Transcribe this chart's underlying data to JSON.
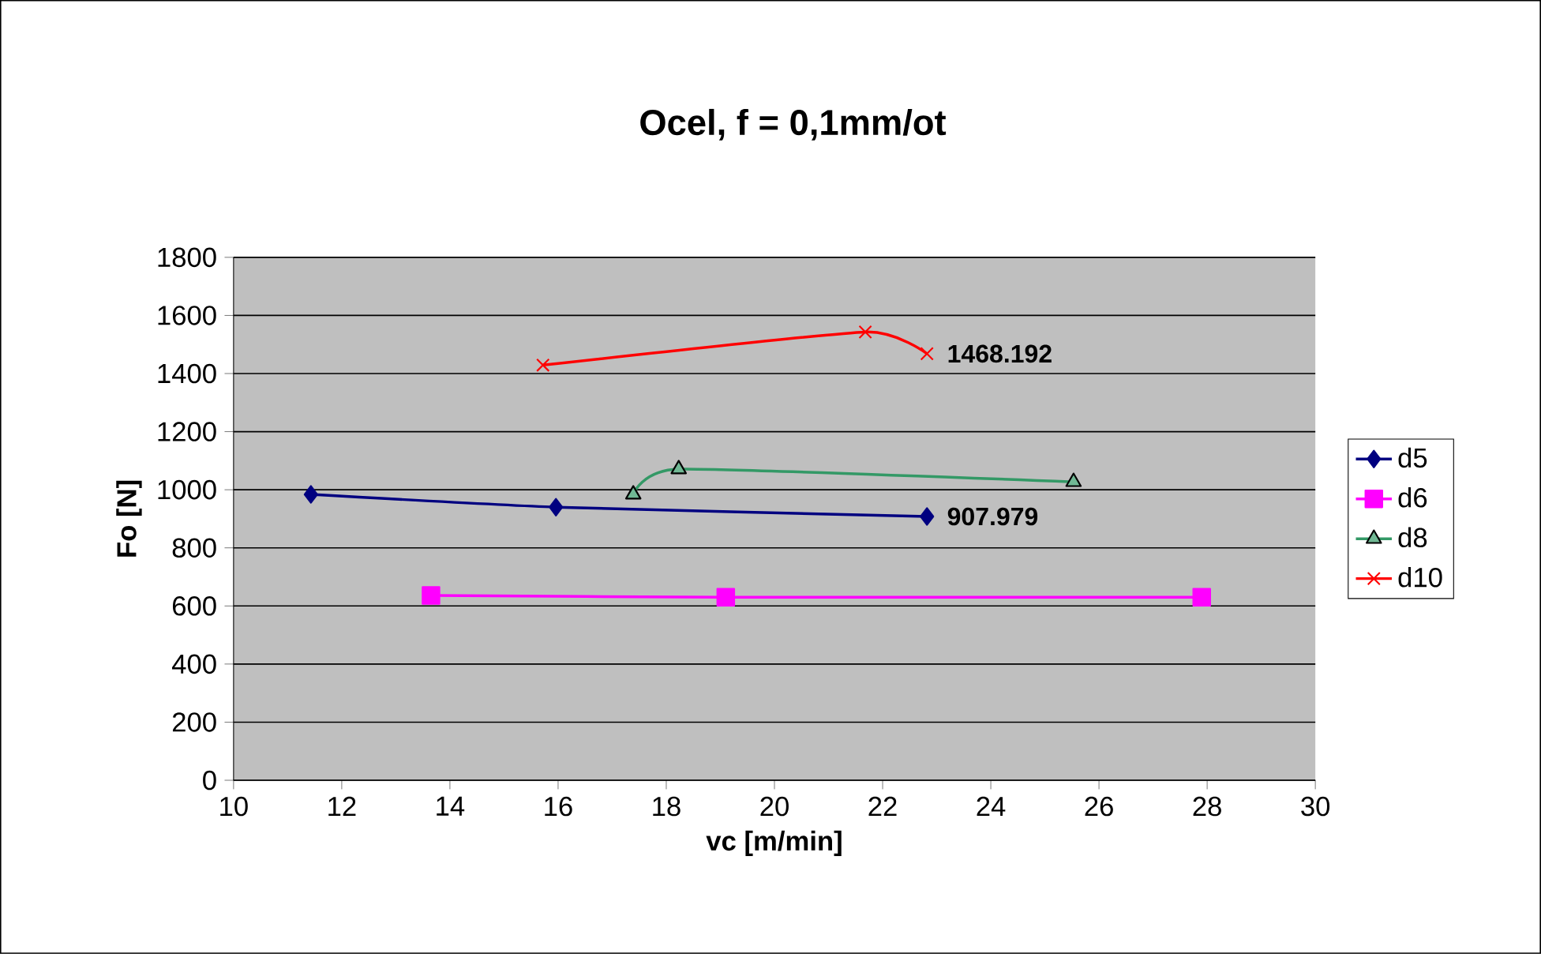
{
  "chart_data": {
    "type": "line",
    "title": "Ocel, f = 0,1mm/ot",
    "xlabel": "vc [m/min]",
    "ylabel": "Fo [N]",
    "xlim": [
      10,
      30
    ],
    "xticks": [
      10,
      12,
      14,
      16,
      18,
      20,
      22,
      24,
      26,
      28,
      30
    ],
    "ylim": [
      0,
      1800
    ],
    "yticks": [
      0,
      200,
      400,
      600,
      800,
      1000,
      1200,
      1400,
      1600,
      1800
    ],
    "grid": "y",
    "legend": "right",
    "series": [
      {
        "name": "d5",
        "color": "#000080",
        "marker": "diamond",
        "x": [
          11.43,
          15.96,
          22.82
        ],
        "values": [
          984,
          940,
          907.979
        ]
      },
      {
        "name": "d6",
        "color": "#ff00ff",
        "marker": "square",
        "x": [
          13.65,
          19.1,
          27.9
        ],
        "values": [
          636,
          630,
          630
        ]
      },
      {
        "name": "d8",
        "color": "#339966",
        "marker": "triangle",
        "x": [
          17.39,
          18.23,
          25.53
        ],
        "values": [
          984,
          1071,
          1027
        ]
      },
      {
        "name": "d10",
        "color": "#ff0000",
        "marker": "cross",
        "x": [
          15.72,
          21.68,
          22.82
        ],
        "values": [
          1429,
          1543,
          1468.192
        ]
      }
    ],
    "annotations": [
      {
        "text": "907.979",
        "x": 22.82,
        "y": 907.979
      },
      {
        "text": "1468.192",
        "x": 22.82,
        "y": 1468.192
      }
    ]
  }
}
